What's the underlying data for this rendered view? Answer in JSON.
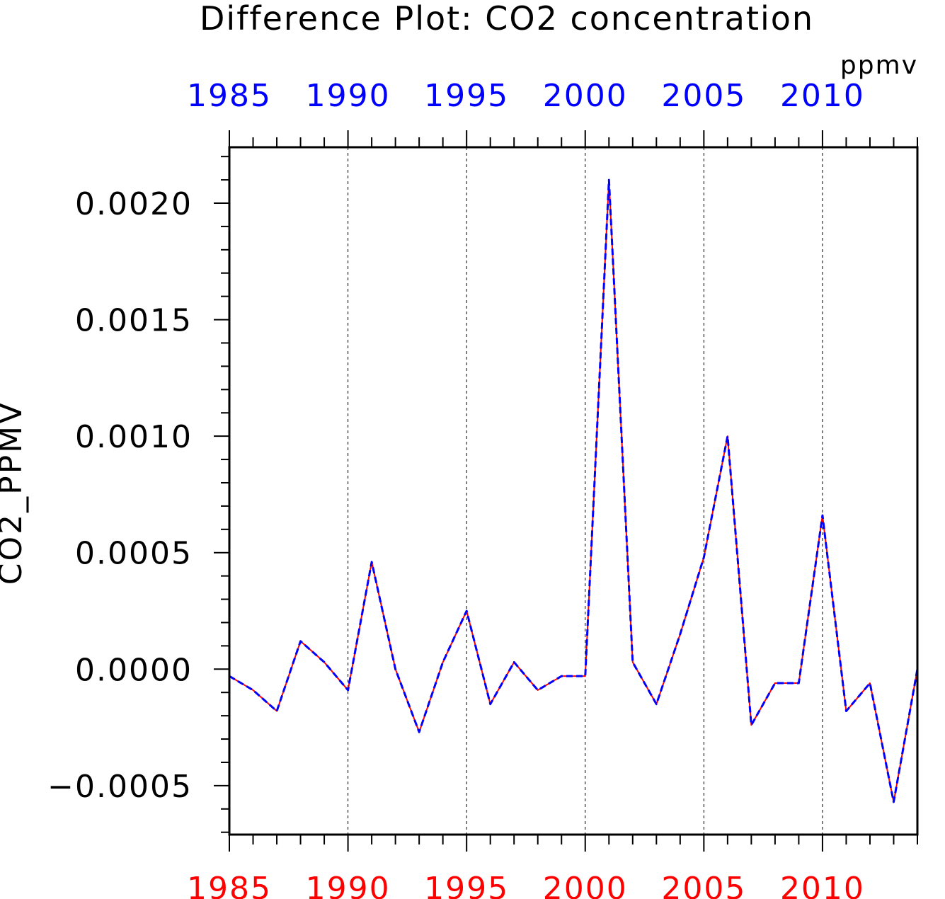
{
  "chart_data": {
    "type": "line",
    "title": "Difference Plot: CO2 concentration",
    "units": "ppmv",
    "ylabel": "CO2_PPMV",
    "xlabel": "",
    "xlim": [
      1985,
      2014
    ],
    "ylim": [
      -0.00071,
      0.00224
    ],
    "grid": "vertical-dashed-at-major-x-ticks",
    "x_ticks_top": [
      1985,
      1990,
      1995,
      2000,
      2005,
      2010
    ],
    "x_tick_labels_top": [
      "1985",
      "1990",
      "1995",
      "2000",
      "2005",
      "2010"
    ],
    "x_ticks_bottom": [
      1985,
      1990,
      1995,
      2000,
      2005,
      2010
    ],
    "x_tick_labels_bottom": [
      "1985",
      "1990",
      "1995",
      "2000",
      "2005",
      "2010"
    ],
    "y_ticks": [
      -0.0005,
      0.0,
      0.0005,
      0.001,
      0.0015,
      0.002
    ],
    "y_tick_labels": [
      "−0.0005",
      "0.0000",
      "0.0005",
      "0.0010",
      "0.0015",
      "0.0020"
    ],
    "top_axis_color": "#0000ff",
    "bottom_axis_color": "#ff0000",
    "series": [
      {
        "color": "#ff0000",
        "style": "solid",
        "x": [
          1985,
          1986,
          1987,
          1988,
          1989,
          1990,
          1991,
          1992,
          1993,
          1994,
          1995,
          1996,
          1997,
          1998,
          1999,
          2000,
          2001,
          2002,
          2003,
          2004,
          2005,
          2006,
          2007,
          2008,
          2009,
          2010,
          2011,
          2012,
          2013,
          2014
        ],
        "values": [
          -3e-05,
          -9e-05,
          -0.00018,
          0.00012,
          3e-05,
          -9e-05,
          0.00046,
          0.0,
          -0.00027,
          3e-05,
          0.00025,
          -0.00015,
          3e-05,
          -9e-05,
          -3e-05,
          -3e-05,
          0.0021,
          3e-05,
          -0.00015,
          0.00015,
          0.00048,
          0.001,
          -0.00024,
          -6e-05,
          -6e-05,
          0.00066,
          -0.00018,
          -6e-05,
          -0.00057,
          0.0
        ]
      },
      {
        "color": "#0000ff",
        "style": "dashed",
        "x": [
          1985,
          1986,
          1987,
          1988,
          1989,
          1990,
          1991,
          1992,
          1993,
          1994,
          1995,
          1996,
          1997,
          1998,
          1999,
          2000,
          2001,
          2002,
          2003,
          2004,
          2005,
          2006,
          2007,
          2008,
          2009,
          2010,
          2011,
          2012,
          2013,
          2014
        ],
        "values": [
          -3e-05,
          -9e-05,
          -0.00018,
          0.00012,
          3e-05,
          -9e-05,
          0.00046,
          0.0,
          -0.00027,
          3e-05,
          0.00025,
          -0.00015,
          3e-05,
          -9e-05,
          -3e-05,
          -3e-05,
          0.0021,
          3e-05,
          -0.00015,
          0.00015,
          0.00048,
          0.001,
          -0.00024,
          -6e-05,
          -6e-05,
          0.00066,
          -0.00018,
          -6e-05,
          -0.00057,
          0.0
        ]
      }
    ]
  }
}
